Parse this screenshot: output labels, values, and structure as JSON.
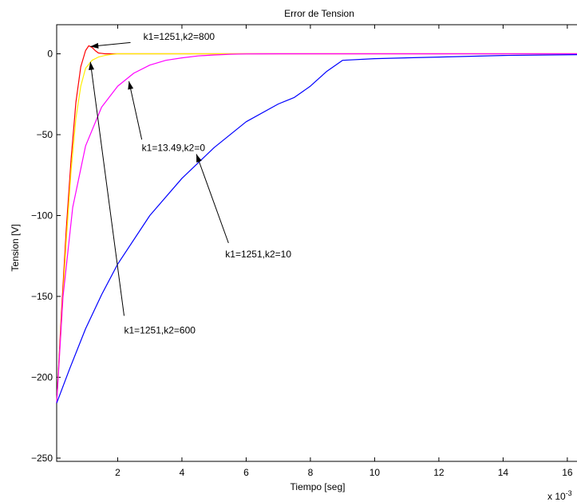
{
  "chart_data": {
    "type": "line",
    "title": "Error de Tension",
    "xlabel": "Tiempo [seg]",
    "ylabel": "Tension [V]",
    "x_multiplier_label": "x 10",
    "x_multiplier_exponent": "-3",
    "xlim": [
      0.1,
      16.5
    ],
    "ylim": [
      -252,
      18
    ],
    "x_ticks": [
      2,
      4,
      6,
      8,
      10,
      12,
      14,
      16
    ],
    "x_tick_labels": [
      "2",
      "4",
      "6",
      "8",
      "10",
      "12",
      "14",
      "16"
    ],
    "y_ticks": [
      0,
      -50,
      -100,
      -150,
      -200,
      -250
    ],
    "y_tick_labels": [
      "0",
      "−50",
      "−100",
      "−150",
      "−200",
      "−250"
    ],
    "grid": false,
    "series": [
      {
        "color": "#ff0000",
        "x": [
          0.1,
          0.25,
          0.4,
          0.55,
          0.7,
          0.85,
          1.0,
          1.1,
          1.2,
          1.3,
          1.4,
          1.6,
          1.8,
          2.0,
          2.5,
          3.0,
          16.5
        ],
        "y": [
          -216,
          -160,
          -108,
          -65,
          -30,
          -8,
          2,
          5,
          4,
          2,
          0.5,
          0,
          0,
          0,
          0,
          0,
          0
        ]
      },
      {
        "color": "#ffee00",
        "x": [
          0.1,
          0.25,
          0.4,
          0.55,
          0.7,
          0.85,
          1.0,
          1.2,
          1.4,
          1.6,
          1.8,
          2.0,
          2.5,
          3.0,
          16.5
        ],
        "y": [
          -216,
          -165,
          -115,
          -72,
          -40,
          -20,
          -9,
          -4,
          -2,
          -1,
          -0.4,
          0,
          0,
          0,
          0
        ]
      },
      {
        "color": "#ff00ff",
        "x": [
          0.1,
          0.3,
          0.6,
          1.0,
          1.5,
          2.0,
          2.5,
          3.0,
          3.5,
          4.0,
          4.5,
          5.0,
          5.5,
          6.0,
          7.0,
          8.0,
          16.5
        ],
        "y": [
          -216,
          -150,
          -95,
          -57,
          -33,
          -20,
          -12,
          -7,
          -4,
          -2.5,
          -1.3,
          -0.7,
          -0.3,
          -0.1,
          0,
          0,
          0
        ]
      },
      {
        "color": "#0000ff",
        "x": [
          0.1,
          0.5,
          1.0,
          1.5,
          2.0,
          3.0,
          4.0,
          5.0,
          6.0,
          7.0,
          7.5,
          8.0,
          8.5,
          9.0,
          10.0,
          12.0,
          14.0,
          16.5
        ],
        "y": [
          -216,
          -195,
          -170,
          -149,
          -130,
          -100,
          -77,
          -58,
          -42,
          -31,
          -27,
          -20,
          -11,
          -4,
          -3,
          -2,
          -1,
          -0.5
        ]
      }
    ],
    "annotations": [
      {
        "text": "k1=1251,k2=800",
        "text_xy": [
          2.8,
          10.5
        ],
        "arrow_from": [
          2.4,
          7.0
        ],
        "arrow_to": [
          1.15,
          4.5
        ]
      },
      {
        "text": "k1=13.49,k2=0",
        "text_xy": [
          2.75,
          -58
        ],
        "arrow_from": [
          2.75,
          -53
        ],
        "arrow_to": [
          2.35,
          -17
        ]
      },
      {
        "text": "k1=1251,k2=10",
        "text_xy": [
          5.35,
          -124
        ],
        "arrow_from": [
          5.45,
          -117
        ],
        "arrow_to": [
          4.45,
          -62
        ]
      },
      {
        "text": "k1=1251,k2=600",
        "text_xy": [
          2.2,
          -171
        ],
        "arrow_from": [
          2.2,
          -162
        ],
        "arrow_to": [
          1.15,
          -5
        ]
      }
    ]
  }
}
